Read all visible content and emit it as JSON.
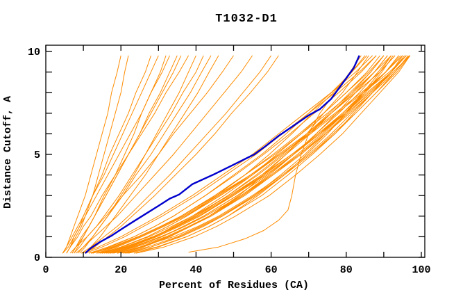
{
  "page": {
    "background": "#ffffff"
  },
  "chart_data": {
    "type": "line",
    "title": "T1032-D1",
    "xlabel": "Percent of Residues (CA)",
    "ylabel": "Distance Cutoff, A",
    "xlim": [
      0,
      100
    ],
    "ylim": [
      0,
      10
    ],
    "x_major_ticks": [
      0,
      20,
      40,
      60,
      80,
      100
    ],
    "x_minor_tick_step": 10,
    "y_major_ticks": [
      0,
      5,
      10
    ],
    "y_minor_tick_step": 1,
    "grid": false,
    "legend_position": "none",
    "model_color": "#ff8c00",
    "highlight_color": "#0000cd",
    "axis_color": "#000000",
    "series_cutoffs": [
      0.2,
      0.5,
      1,
      1.5,
      2,
      3,
      4,
      5,
      6,
      7,
      8,
      9,
      9.8
    ],
    "model_series": [
      {
        "name": "model-01",
        "percents": [
          18,
          25,
          34,
          40.5,
          46,
          55,
          63,
          70,
          76,
          81.5,
          87,
          92,
          95
        ]
      },
      {
        "name": "model-02",
        "percents": [
          16,
          22,
          29,
          34.5,
          40,
          48.5,
          56,
          63,
          69.5,
          75.5,
          81,
          86.5,
          90
        ]
      },
      {
        "name": "model-03",
        "percents": [
          16.5,
          23,
          31,
          37,
          42,
          51,
          59,
          66,
          72,
          78,
          83.5,
          88.5,
          92
        ]
      },
      {
        "name": "model-04",
        "percents": [
          17,
          22.5,
          29.5,
          35.5,
          41,
          50,
          58.5,
          66,
          73,
          79.5,
          86,
          92,
          96
        ]
      },
      {
        "name": "model-05",
        "percents": [
          12.5,
          17,
          23.5,
          29,
          34,
          42.5,
          50.5,
          58,
          65,
          71.5,
          78,
          84,
          88
        ]
      },
      {
        "name": "model-06",
        "percents": [
          24,
          31.5,
          39.5,
          45.5,
          50.5,
          59.5,
          66.5,
          73,
          79,
          84,
          89,
          94,
          97
        ]
      },
      {
        "name": "model-07",
        "percents": [
          9.5,
          14,
          20,
          25,
          30,
          39,
          47,
          55,
          62,
          69,
          76,
          82.5,
          87
        ]
      },
      {
        "name": "model-08",
        "percents": [
          17,
          23.5,
          31,
          36.5,
          42,
          51,
          59,
          66,
          73,
          79,
          84.5,
          90.5,
          94
        ]
      },
      {
        "name": "model-09",
        "percents": [
          12.5,
          18,
          25,
          31,
          36,
          45,
          53,
          60.5,
          67.5,
          74,
          80,
          86,
          90
        ]
      },
      {
        "name": "model-10",
        "percents": [
          21.5,
          28,
          35.5,
          41.5,
          47,
          56,
          63.5,
          70.5,
          76.5,
          82.5,
          88,
          93,
          96.5
        ]
      },
      {
        "name": "model-11",
        "percents": [
          13.5,
          18.5,
          25,
          31,
          36,
          45,
          53,
          61,
          68,
          75,
          81.5,
          87.5,
          92
        ]
      },
      {
        "name": "model-12",
        "percents": [
          14.5,
          20,
          27,
          32.5,
          37.5,
          45.5,
          53,
          59.5,
          65.5,
          71,
          76.5,
          81.5,
          85
        ]
      },
      {
        "name": "model-13",
        "percents": [
          22,
          29.5,
          37.5,
          43.5,
          48.5,
          57.5,
          64.5,
          71,
          77,
          82,
          87,
          92,
          95
        ]
      },
      {
        "name": "model-14",
        "percents": [
          12,
          18,
          25,
          31,
          36.5,
          46,
          54.5,
          62,
          69.5,
          76,
          82.5,
          89,
          93
        ]
      },
      {
        "name": "model-15",
        "percents": [
          19,
          25,
          32.5,
          38.5,
          43.5,
          52,
          59.5,
          66,
          72,
          77.5,
          82.5,
          87.5,
          91
        ]
      },
      {
        "name": "model-16",
        "percents": [
          12,
          17.5,
          24.5,
          30.5,
          36,
          45.5,
          54.5,
          62.5,
          70.5,
          77.5,
          84.5,
          91.5,
          96
        ]
      },
      {
        "name": "model-17",
        "percents": [
          20,
          26,
          33,
          38.5,
          44,
          52.5,
          60,
          67,
          73.5,
          79.5,
          85,
          90.5,
          94
        ]
      },
      {
        "name": "model-18",
        "percents": [
          14,
          20,
          27.5,
          33.5,
          39,
          49,
          57.5,
          65.5,
          73,
          80,
          86.5,
          92.5,
          97
        ]
      },
      {
        "name": "model-19",
        "percents": [
          19,
          25.5,
          33,
          38.5,
          43.5,
          51.5,
          58,
          64,
          69.5,
          74,
          79,
          83,
          86
        ]
      },
      {
        "name": "model-20",
        "percents": [
          15.5,
          20.5,
          27,
          32.5,
          37.5,
          46.5,
          54.5,
          62,
          69.5,
          76,
          82.5,
          89,
          93
        ]
      },
      {
        "name": "model-21",
        "percents": [
          15,
          21.5,
          29.5,
          35.5,
          41,
          49.5,
          57.5,
          64,
          70.5,
          76,
          81.5,
          86.5,
          90
        ]
      },
      {
        "name": "model-22",
        "percents": [
          19,
          25.5,
          32.5,
          38.5,
          44,
          53,
          60.5,
          68,
          74.5,
          80.5,
          86.5,
          92,
          95.5
        ]
      },
      {
        "name": "model-23",
        "percents": [
          10.5,
          15,
          21,
          26,
          31,
          40,
          48,
          56,
          63,
          70,
          77,
          83.5,
          88
        ]
      },
      {
        "name": "model-24",
        "percents": [
          16,
          21.5,
          29,
          35,
          40,
          49.5,
          58,
          65.5,
          72.5,
          79.5,
          85.5,
          92,
          96
        ]
      },
      {
        "name": "model-25",
        "percents": [
          17.5,
          24,
          32,
          38,
          43.5,
          52.5,
          60.5,
          67.5,
          74,
          79.5,
          85,
          90.5,
          94
        ]
      },
      {
        "name": "model-26",
        "percents": [
          23.5,
          30,
          37.5,
          43.5,
          48.5,
          56.5,
          63.5,
          69.5,
          75,
          80,
          84.5,
          89,
          92
        ]
      },
      {
        "name": "model-27",
        "percents": [
          13.5,
          19,
          25.5,
          31.5,
          37,
          46.5,
          55,
          62.5,
          70,
          77,
          84,
          90.5,
          95
        ]
      },
      {
        "name": "model-28",
        "percents": [
          14.5,
          21,
          28.5,
          35,
          40.5,
          50,
          58,
          65.5,
          72.5,
          79,
          85,
          90.5,
          94.5
        ]
      },
      {
        "name": "model-29",
        "percents": [
          20.5,
          27,
          35,
          41,
          46.5,
          55.5,
          63.5,
          70.5,
          77,
          82.5,
          88,
          93.5,
          97
        ]
      },
      {
        "name": "model-30",
        "percents": [
          11.5,
          16.5,
          23.5,
          29,
          34,
          42.5,
          50,
          57.5,
          64,
          70,
          76,
          81.5,
          85.5
        ]
      },
      {
        "name": "model-31",
        "percents": [
          21,
          28,
          36,
          42,
          47,
          55.5,
          62.5,
          69,
          74.5,
          80,
          85,
          89.5,
          92.5
        ]
      },
      {
        "name": "model-32",
        "percents": [
          15,
          21,
          28.5,
          34.5,
          39.5,
          48.5,
          56.5,
          63.5,
          70,
          76,
          82,
          87.5,
          91
        ]
      },
      {
        "name": "model-33",
        "percents": [
          17,
          22.5,
          29,
          34,
          39,
          47.5,
          55,
          61.5,
          68,
          74,
          80,
          85.5,
          89
        ]
      },
      {
        "name": "model-34",
        "percents": [
          16.5,
          23,
          30.5,
          37,
          42.5,
          52,
          60,
          67.5,
          74.5,
          81,
          87,
          93,
          96.8
        ]
      },
      {
        "name": "model-35",
        "percents": [
          5.5,
          6.5,
          7.5,
          9,
          10,
          12.5,
          15.5,
          18,
          20.5,
          23,
          25.5,
          28,
          30
        ]
      },
      {
        "name": "model-36",
        "percents": [
          7,
          8,
          9.5,
          11.5,
          13,
          16,
          19,
          22,
          25,
          27.5,
          30.5,
          33,
          35
        ]
      },
      {
        "name": "model-37",
        "percents": [
          4.5,
          5.5,
          7,
          8.5,
          10,
          12.5,
          15,
          17,
          19.5,
          22,
          24,
          26.5,
          28
        ]
      },
      {
        "name": "model-38",
        "percents": [
          8.5,
          10,
          12.5,
          14.5,
          16.5,
          20,
          23.5,
          26.5,
          29.5,
          32.5,
          35.5,
          38,
          40
        ]
      },
      {
        "name": "model-39",
        "percents": [
          5.5,
          6.5,
          8.5,
          10,
          12,
          15,
          18.5,
          22,
          25.5,
          29,
          32,
          35.5,
          38
        ]
      },
      {
        "name": "model-40",
        "percents": [
          7,
          8,
          10,
          11.5,
          13,
          15.5,
          18.5,
          21,
          23.5,
          25.5,
          28,
          30.5,
          32
        ]
      },
      {
        "name": "model-41",
        "percents": [
          9,
          10.5,
          12.5,
          14.5,
          16.5,
          20.5,
          24,
          28,
          31.5,
          35,
          38.5,
          41.5,
          44
        ]
      },
      {
        "name": "model-42",
        "percents": [
          4.5,
          5.5,
          6.5,
          7.5,
          8.5,
          10.5,
          12,
          13.5,
          15,
          16.5,
          17.5,
          19,
          20
        ]
      },
      {
        "name": "model-43",
        "percents": [
          7.5,
          8.5,
          10,
          11.5,
          13,
          16,
          19,
          22,
          25,
          28,
          31,
          34,
          36
        ]
      },
      {
        "name": "model-44",
        "percents": [
          7.5,
          9,
          11,
          13.5,
          15.5,
          19.5,
          23,
          26.5,
          30,
          33.5,
          36.5,
          40,
          42
        ]
      },
      {
        "name": "model-45",
        "percents": [
          4.5,
          6,
          7.5,
          9,
          10.5,
          13.5,
          16.5,
          19.5,
          22.5,
          25.5,
          28,
          31,
          33
        ]
      },
      {
        "name": "model-46",
        "percents": [
          10.5,
          12,
          14.5,
          16.5,
          18.5,
          22.5,
          26.5,
          30,
          33.5,
          37,
          40.5,
          43.5,
          46
        ]
      },
      {
        "name": "model-47",
        "percents": [
          5.5,
          6.5,
          8,
          9.5,
          10.5,
          12.5,
          14,
          15.5,
          17,
          18.5,
          20,
          21,
          22
        ]
      },
      {
        "name": "model-48",
        "percents": [
          8,
          10,
          13,
          16,
          19,
          24,
          29,
          34,
          38.5,
          43,
          47.5,
          52,
          55
        ]
      },
      {
        "name": "model-49",
        "percents": [
          10.5,
          13,
          16.5,
          20,
          23,
          29,
          34.5,
          40,
          45,
          49.5,
          54.5,
          59,
          62
        ]
      },
      {
        "name": "model-50",
        "percents": [
          6.5,
          8,
          11,
          13.5,
          16,
          20.5,
          25.5,
          30,
          34,
          38.5,
          43,
          47,
          50
        ]
      },
      {
        "name": "model-51",
        "percents": [
          9.5,
          12,
          15.5,
          19,
          22,
          27.5,
          33,
          38,
          43,
          48,
          52.5,
          57,
          60
        ]
      }
    ],
    "extra_series": [
      {
        "name": "model-outlier",
        "points": [
          [
            38,
            0.25
          ],
          [
            46,
            0.5
          ],
          [
            53,
            0.9
          ],
          [
            58,
            1.3
          ],
          [
            62,
            1.8
          ],
          [
            64.5,
            2.3
          ],
          [
            65.5,
            3
          ],
          [
            66.5,
            4
          ],
          [
            68,
            5
          ],
          [
            70,
            6
          ],
          [
            73,
            7
          ],
          [
            77,
            8
          ],
          [
            81,
            9
          ],
          [
            84,
            9.8
          ]
        ]
      }
    ],
    "highlight_series": {
      "name": "highlighted-model",
      "points": [
        [
          10.5,
          0.2
        ],
        [
          12,
          0.45
        ],
        [
          14.5,
          0.75
        ],
        [
          17.5,
          1.05
        ],
        [
          20,
          1.35
        ],
        [
          23,
          1.7
        ],
        [
          26.5,
          2.1
        ],
        [
          30,
          2.5
        ],
        [
          33,
          2.85
        ],
        [
          35.5,
          3.05
        ],
        [
          39,
          3.55
        ],
        [
          45,
          4.05
        ],
        [
          50,
          4.5
        ],
        [
          55.5,
          5.0
        ],
        [
          58.5,
          5.4
        ],
        [
          62,
          5.9
        ],
        [
          66,
          6.4
        ],
        [
          70,
          6.9
        ],
        [
          73,
          7.2
        ],
        [
          76,
          7.7
        ],
        [
          78,
          8.2
        ],
        [
          80,
          8.7
        ],
        [
          82,
          9.2
        ],
        [
          83.5,
          9.8
        ]
      ]
    }
  }
}
